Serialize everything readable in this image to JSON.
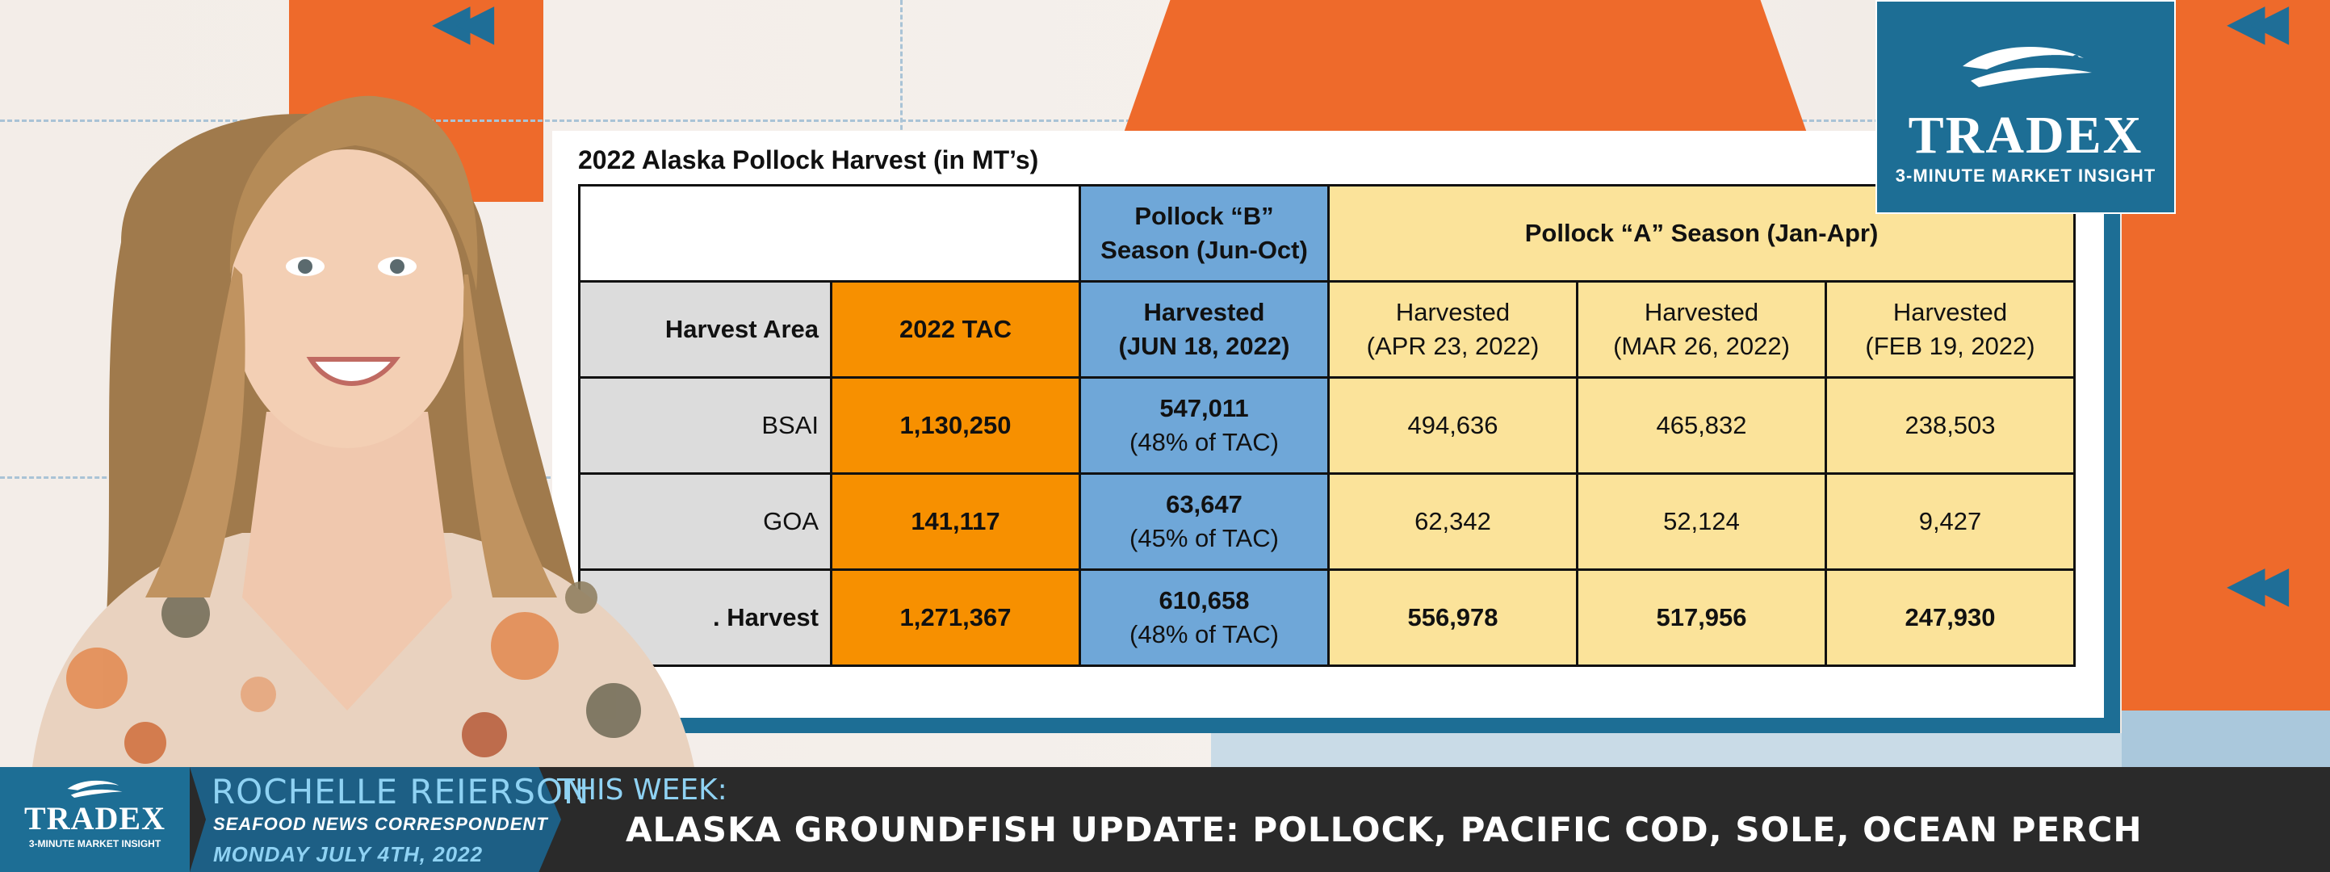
{
  "table": {
    "title": "2022 Alaska Pollock Harvest (in MT’s)",
    "group_headers": {
      "b_season": "Pollock “B” Season (Jun-Oct)",
      "a_season": "Pollock “A” Season (Jan-Apr)"
    },
    "columns": [
      {
        "label": "Harvest Area"
      },
      {
        "label": "2022 TAC"
      },
      {
        "label": "Harvested",
        "sub": "(JUN 18, 2022)"
      },
      {
        "label": "Harvested",
        "sub": "(APR 23, 2022)"
      },
      {
        "label": "Harvested",
        "sub": "(MAR 26, 2022)"
      },
      {
        "label": "Harvested",
        "sub": "(FEB 19, 2022)"
      }
    ],
    "rows": [
      {
        "area": "BSAI",
        "tac": "1,130,250",
        "b_value": "547,011",
        "b_pct": "(48% of TAC)",
        "apr": "494,636",
        "mar": "465,832",
        "feb": "238,503"
      },
      {
        "area": "GOA",
        "tac": "141,117",
        "b_value": "63,647",
        "b_pct": "(45% of TAC)",
        "apr": "62,342",
        "mar": "52,124",
        "feb": "9,427"
      },
      {
        "area": ". Harvest",
        "tac": "1,271,367",
        "b_value": "610,658",
        "b_pct": "(48% of TAC)",
        "apr": "556,978",
        "mar": "517,956",
        "feb": "247,930"
      }
    ]
  },
  "logo": {
    "name": "TRADEX",
    "tagline": "3-MINUTE MARKET INSIGHT"
  },
  "lower_third": {
    "logo_name": "TRADEX",
    "logo_tagline": "3-MINUTE MARKET INSIGHT",
    "presenter_name": "ROCHELLE REIERSON",
    "presenter_role": "SEAFOOD NEWS CORRESPONDENT",
    "date": "MONDAY JULY 4TH, 2022",
    "week_label": "THIS WEEK:",
    "headline": "ALASKA GROUNDFISH UPDATE: POLLOCK, PACIFIC COD, SOLE, OCEAN PERCH"
  },
  "colors": {
    "teal": "#1d6e95",
    "orange_accent": "#ee6a2b",
    "tac_orange": "#f79000",
    "b_season_blue": "#6fa7d8",
    "a_season_yellow": "#fbe39a"
  }
}
